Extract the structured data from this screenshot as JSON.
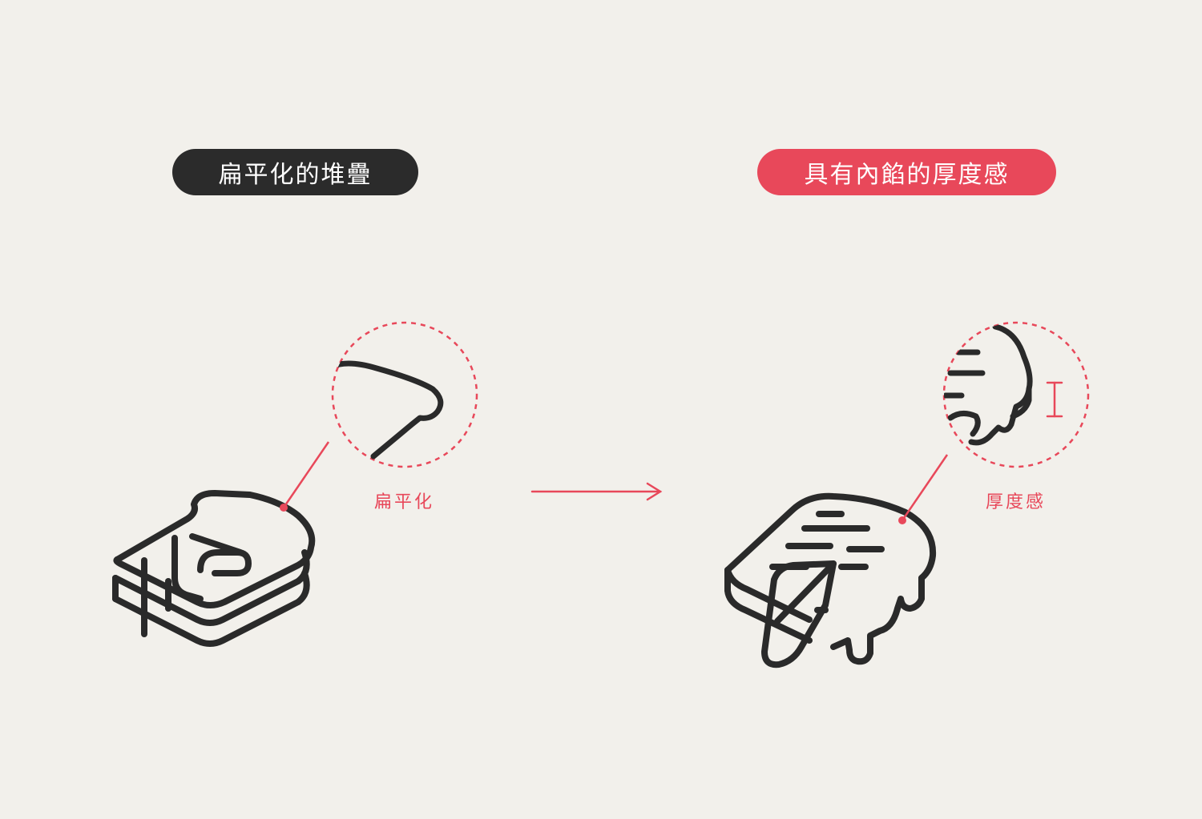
{
  "left_panel": {
    "title": "扁平化的堆疊",
    "callout_label": "扁平化"
  },
  "right_panel": {
    "title": "具有內餡的厚度感",
    "callout_label": "厚度感"
  },
  "icons": {
    "left_illustration": "stacked-flat-toast-icon",
    "right_illustration": "thick-filled-toast-icon",
    "transition": "arrow-right-icon"
  },
  "colors": {
    "background": "#f2f0eb",
    "dark_pill": "#2b2b2b",
    "accent": "#e8485a",
    "line": "#2a2a2a"
  }
}
